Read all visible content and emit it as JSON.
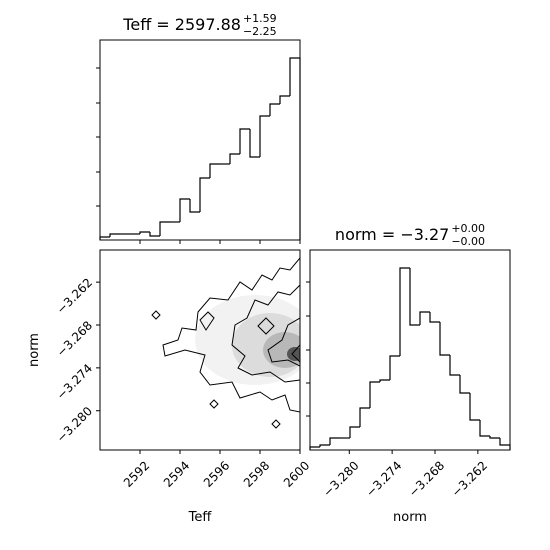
{
  "chart_data": [
    {
      "type": "histogram",
      "title": {
        "text": "Teff = 2597.88",
        "upper": "+1.59",
        "lower": "−2.25"
      },
      "bins": [
        2590,
        2590.5,
        2591,
        2591.5,
        2592,
        2592.5,
        2593,
        2593.5,
        2594,
        2594.5,
        2595,
        2595.5,
        2596,
        2596.5,
        2597,
        2597.5,
        2598,
        2598.5,
        2599,
        2599.5,
        2600
      ],
      "values": [
        3,
        6,
        6,
        6,
        8,
        4,
        18,
        18,
        41,
        28,
        62,
        76,
        76,
        86,
        111,
        83,
        124,
        136,
        144,
        182
      ],
      "xlim": [
        2590,
        2600
      ],
      "ylim": [
        0,
        200
      ],
      "yticks": [
        34,
        68,
        103,
        137,
        172
      ],
      "color": "#000000"
    },
    {
      "type": "contour",
      "xlabel": "Teff",
      "ylabel": "norm",
      "xlim": [
        2590,
        2600
      ],
      "ylim": [
        -3.2855,
        -3.2575
      ],
      "xticks": [
        2592,
        2594,
        2596,
        2598,
        2600
      ],
      "yticks": [
        {
          "value": -3.262,
          "label": "−3.262"
        },
        {
          "value": -3.268,
          "label": "−3.268"
        },
        {
          "value": -3.274,
          "label": "−3.274"
        },
        {
          "value": -3.28,
          "label": "−3.280"
        }
      ]
    },
    {
      "type": "histogram",
      "title": {
        "text": "norm = −3.27",
        "upper": "+0.00",
        "lower": "−0.00"
      },
      "xlabel": "norm",
      "bins": [
        -3.2855,
        -3.2841,
        -3.2827,
        -3.2813,
        -3.2799,
        -3.2785,
        -3.2771,
        -3.2757,
        -3.2743,
        -3.2729,
        -3.2715,
        -3.2701,
        -3.2687,
        -3.2673,
        -3.2659,
        -3.2645,
        -3.2631,
        -3.2617,
        -3.2603,
        -3.2589,
        -3.2575
      ],
      "values": [
        3,
        5,
        12,
        12,
        23,
        42,
        68,
        70,
        94,
        182,
        125,
        138,
        128,
        95,
        75,
        57,
        30,
        14,
        12,
        5
      ],
      "xlim": [
        -3.2855,
        -3.2575
      ],
      "ylim": [
        0,
        200
      ],
      "xticks": [
        {
          "value": -3.28,
          "label": "−3.280"
        },
        {
          "value": -3.274,
          "label": "−3.274"
        },
        {
          "value": -3.268,
          "label": "−3.268"
        },
        {
          "value": -3.262,
          "label": "−3.262"
        }
      ],
      "yticks": [
        34,
        67,
        100,
        134,
        168
      ],
      "color": "#000000"
    }
  ]
}
